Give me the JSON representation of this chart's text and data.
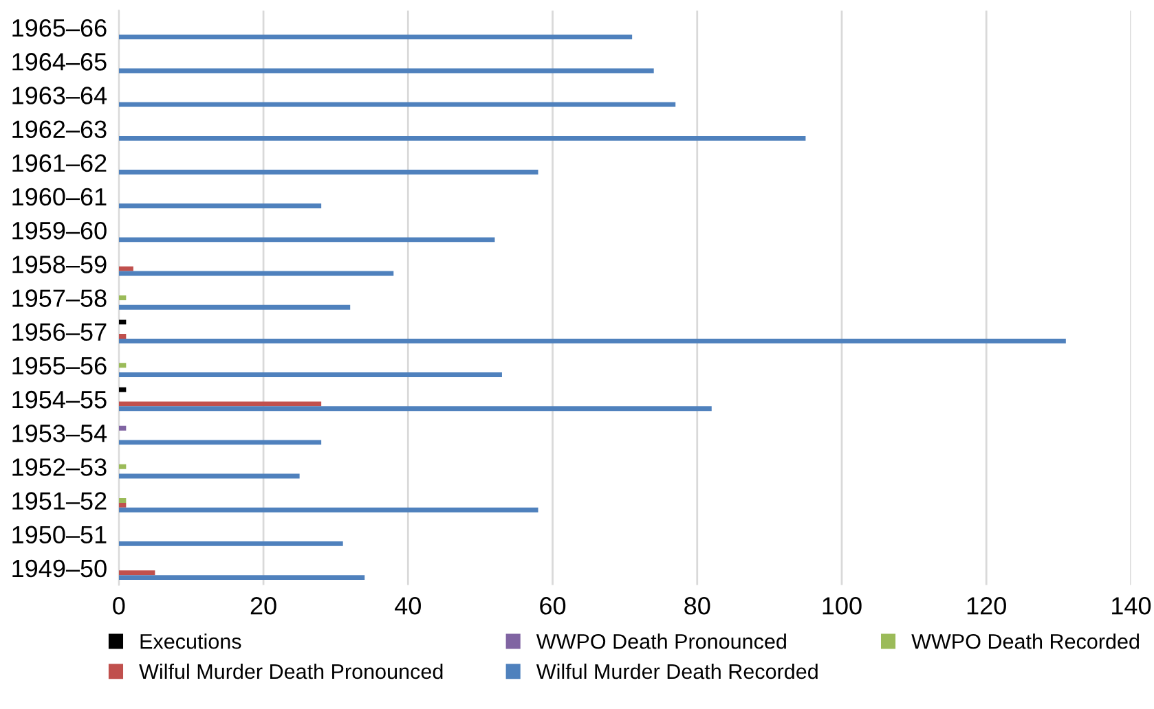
{
  "chart_data": {
    "type": "bar",
    "orientation": "horizontal",
    "categories": [
      "1965–66",
      "1964–65",
      "1963–64",
      "1962–63",
      "1961–62",
      "1960–61",
      "1959–60",
      "1958–59",
      "1957–58",
      "1956–57",
      "1955–56",
      "1954–55",
      "1953–54",
      "1952–53",
      "1951–52",
      "1950–51",
      "1949–50"
    ],
    "series": [
      {
        "name": "Executions",
        "color": "#000000",
        "values": [
          0,
          0,
          0,
          0,
          0,
          0,
          0,
          0,
          0,
          1,
          0,
          1,
          0,
          0,
          0,
          0,
          0
        ]
      },
      {
        "name": "WWPO Death Pronounced",
        "color": "#8064a2",
        "values": [
          0,
          0,
          0,
          0,
          0,
          0,
          0,
          0,
          0,
          0,
          0,
          0,
          1,
          0,
          0,
          0,
          0
        ]
      },
      {
        "name": "WWPO Death Recorded",
        "color": "#9bbb59",
        "values": [
          0,
          0,
          0,
          0,
          0,
          0,
          0,
          0,
          1,
          0,
          1,
          0,
          0,
          1,
          1,
          0,
          0
        ]
      },
      {
        "name": "Wilful Murder Death Pronounced",
        "color": "#c0504d",
        "values": [
          0,
          0,
          0,
          0,
          0,
          0,
          0,
          2,
          0,
          1,
          0,
          28,
          0,
          0,
          1,
          0,
          5
        ]
      },
      {
        "name": "Wilful Murder Death Recorded",
        "color": "#4f81bd",
        "values": [
          71,
          74,
          77,
          95,
          58,
          28,
          52,
          38,
          32,
          131,
          53,
          82,
          28,
          25,
          58,
          31,
          34
        ]
      }
    ],
    "xlim": [
      0,
      140
    ],
    "xticks": [
      0,
      20,
      40,
      60,
      80,
      100,
      120,
      140
    ],
    "grid": "x",
    "legend": "bottom"
  }
}
